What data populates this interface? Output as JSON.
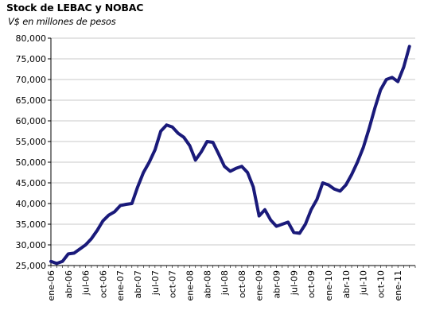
{
  "chart_data": {
    "type": "line",
    "title": "Stock de LEBAC y NOBAC",
    "subtitle": "V$ en millones de pesos",
    "ylim": [
      25000,
      80000
    ],
    "yticks": [
      "25,000",
      "30,000",
      "35,000",
      "40,000",
      "45,000",
      "50,000",
      "55,000",
      "60,000",
      "65,000",
      "70,000",
      "75,000",
      "80,000"
    ],
    "ytick_values": [
      25000,
      30000,
      35000,
      40000,
      45000,
      50000,
      55000,
      60000,
      65000,
      70000,
      75000,
      80000
    ],
    "xticks": [
      "ene-06",
      "abr-06",
      "jul-06",
      "oct-06",
      "ene-07",
      "abr-07",
      "jul-07",
      "oct-07",
      "ene-08",
      "abr-08",
      "jul-08",
      "oct-08",
      "ene-09",
      "abr-09",
      "jul-09",
      "oct-09",
      "ene-10",
      "abr-10",
      "jul-10",
      "oct-10",
      "ene-11"
    ],
    "grid": true,
    "line_color": "#1a1a7a",
    "series": [
      {
        "x": [
          "2006-01",
          "2006-02",
          "2006-03",
          "2006-04",
          "2006-05",
          "2006-06",
          "2006-07",
          "2006-08",
          "2006-09",
          "2006-10",
          "2006-11",
          "2006-12",
          "2007-01",
          "2007-02",
          "2007-03",
          "2007-04",
          "2007-05",
          "2007-06",
          "2007-07",
          "2007-08",
          "2007-09",
          "2007-10",
          "2007-11",
          "2007-12",
          "2008-01",
          "2008-02",
          "2008-03",
          "2008-04",
          "2008-05",
          "2008-06",
          "2008-07",
          "2008-08",
          "2008-09",
          "2008-10",
          "2008-11",
          "2008-12",
          "2009-01",
          "2009-02",
          "2009-03",
          "2009-04",
          "2009-05",
          "2009-06",
          "2009-07",
          "2009-08",
          "2009-09",
          "2009-10",
          "2009-11",
          "2009-12",
          "2010-01",
          "2010-02",
          "2010-03",
          "2010-04",
          "2010-05",
          "2010-06",
          "2010-07",
          "2010-08",
          "2010-09",
          "2010-10",
          "2010-11",
          "2010-12",
          "2011-01",
          "2011-02",
          "2011-03"
        ],
        "values": [
          26000,
          25500,
          26000,
          27800,
          28000,
          29000,
          30000,
          31500,
          33500,
          35800,
          37200,
          38000,
          39500,
          39800,
          40000,
          44000,
          47500,
          50000,
          53000,
          57500,
          59000,
          58500,
          57000,
          56000,
          54000,
          50500,
          52500,
          55000,
          54800,
          52000,
          49000,
          47800,
          48500,
          49000,
          47500,
          44000,
          37000,
          38500,
          36000,
          34500,
          35000,
          35500,
          33000,
          32800,
          35000,
          38500,
          41000,
          45000,
          44500,
          43500,
          43000,
          44500,
          47000,
          50000,
          53500,
          58000,
          63000,
          67500,
          70000,
          70500,
          69500,
          73000,
          78000
        ]
      }
    ]
  }
}
